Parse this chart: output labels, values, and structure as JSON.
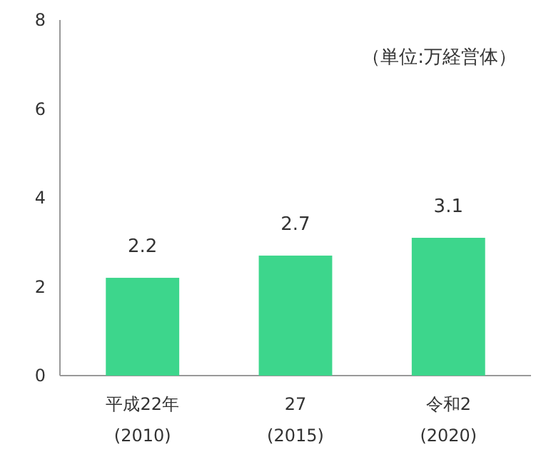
{
  "chart_data": {
    "type": "bar",
    "categories": [
      "平成22年\n(2010)",
      "27\n(2015)",
      "令和2\n(2020)"
    ],
    "values": [
      2.2,
      2.7,
      3.1
    ],
    "color": "#3dd68c",
    "ylim": [
      0,
      8
    ],
    "yticks": [
      0,
      2,
      4,
      6,
      8
    ],
    "data_labels": true,
    "annotations": [
      "（単位:万経営体）"
    ]
  }
}
